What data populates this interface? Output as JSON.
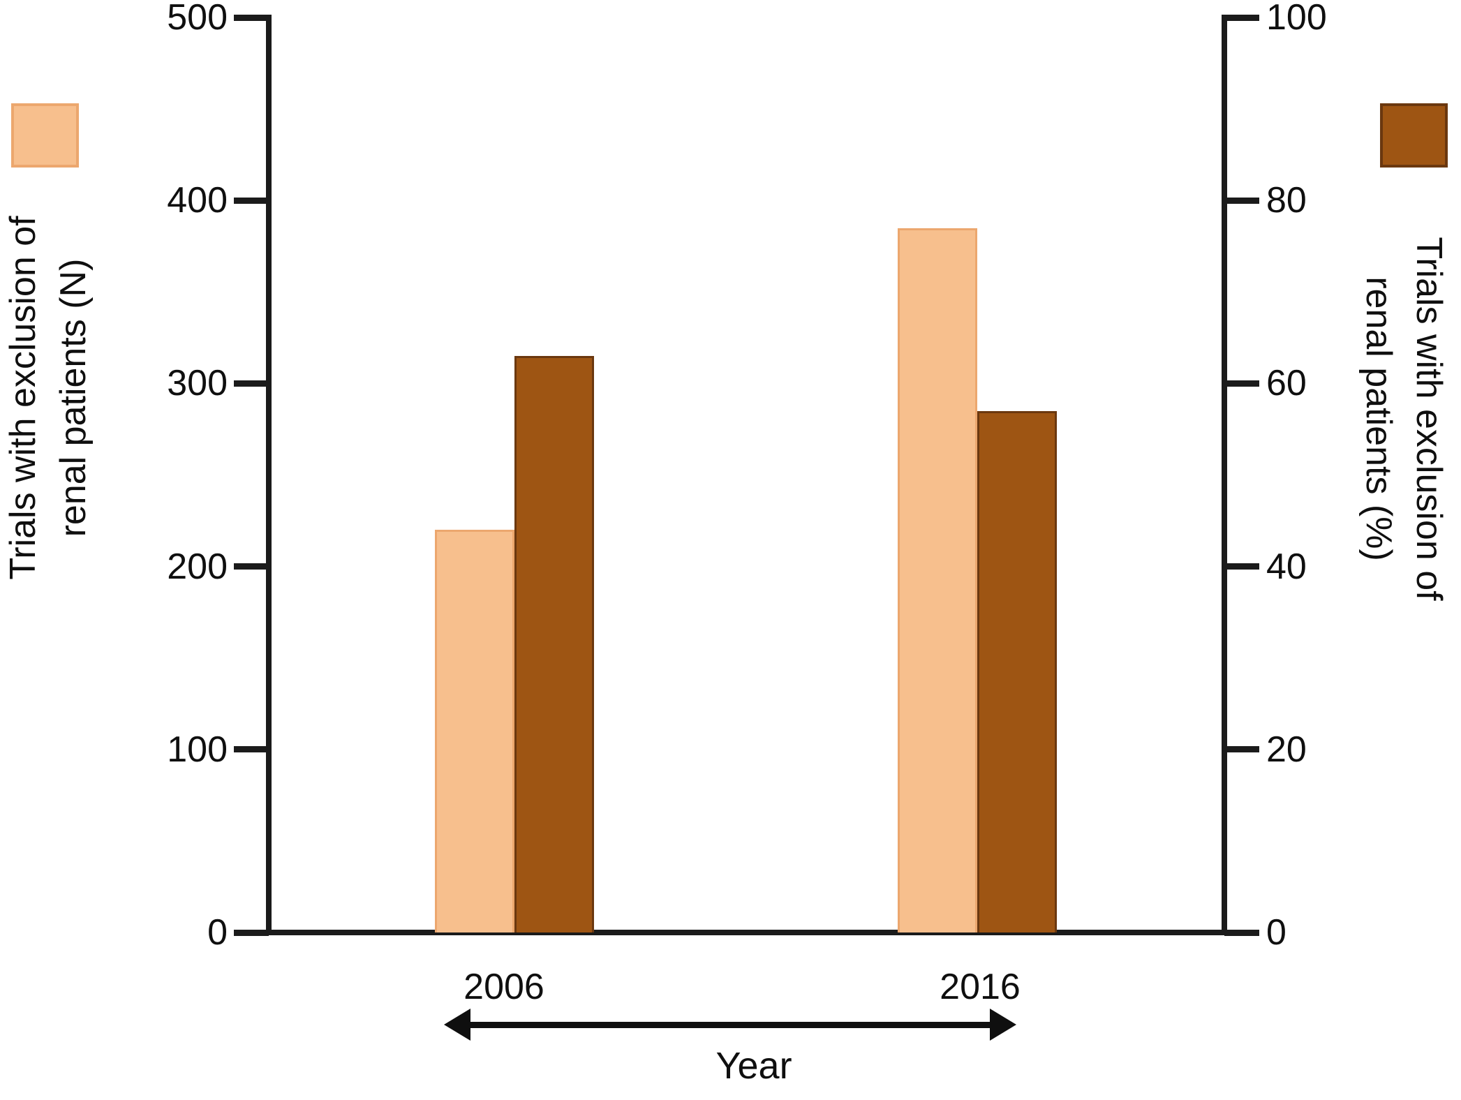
{
  "figure": {
    "background": "#ffffff",
    "text_color": "#0f0f0f",
    "axis_color": "#1b1b1b"
  },
  "chart_data": {
    "type": "bar",
    "categories": [
      "2006",
      "2016"
    ],
    "series": [
      {
        "name": "Trials with exclusion of renal patients (N)",
        "axis": "left",
        "color": "#F7BF8D",
        "border_color": "#ECA76E",
        "values": [
          220,
          385
        ]
      },
      {
        "name": "Trials with exclusion of renal patients (%)",
        "axis": "right",
        "color": "#9E5513",
        "border_color": "#6B380F",
        "values": [
          63,
          57
        ]
      }
    ],
    "left_axis": {
      "title_line1": "Trials with exclusion of",
      "title_line2": "renal patients (N)",
      "min": 0,
      "max": 500,
      "ticks": [
        0,
        100,
        200,
        300,
        400,
        500
      ]
    },
    "right_axis": {
      "title_line1": "Trials with exclusion of",
      "title_line2": "renal patients (%)",
      "min": 0,
      "max": 100,
      "ticks": [
        0,
        20,
        40,
        60,
        80,
        100
      ]
    },
    "xlabel": "Year",
    "legend_position": "top-corners",
    "grid": false
  }
}
